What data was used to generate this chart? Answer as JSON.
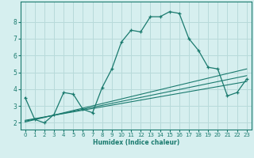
{
  "xlabel": "Humidex (Indice chaleur)",
  "ylabel": "",
  "background_color": "#d6efef",
  "grid_color": "#b8dada",
  "line_color": "#1a7a6e",
  "xlim": [
    -0.5,
    23.5
  ],
  "ylim": [
    1.6,
    9.2
  ],
  "yticks": [
    2,
    3,
    4,
    5,
    6,
    7,
    8
  ],
  "xticks": [
    0,
    1,
    2,
    3,
    4,
    5,
    6,
    7,
    8,
    9,
    10,
    11,
    12,
    13,
    14,
    15,
    16,
    17,
    18,
    19,
    20,
    21,
    22,
    23
  ],
  "main_line_x": [
    0,
    1,
    2,
    3,
    4,
    5,
    6,
    7,
    8,
    9,
    10,
    11,
    12,
    13,
    14,
    15,
    16,
    17,
    18,
    19,
    20,
    21,
    22,
    23
  ],
  "main_line_y": [
    3.5,
    2.2,
    2.0,
    2.5,
    3.8,
    3.7,
    2.8,
    2.6,
    4.1,
    5.2,
    6.8,
    7.5,
    7.4,
    8.3,
    8.3,
    8.6,
    8.5,
    7.0,
    6.3,
    5.3,
    5.2,
    3.6,
    3.8,
    4.6
  ],
  "regression_lines": [
    {
      "x": [
        0,
        23
      ],
      "y": [
        2.05,
        5.2
      ]
    },
    {
      "x": [
        0,
        23
      ],
      "y": [
        2.1,
        4.8
      ]
    },
    {
      "x": [
        0,
        23
      ],
      "y": [
        2.15,
        4.45
      ]
    }
  ]
}
